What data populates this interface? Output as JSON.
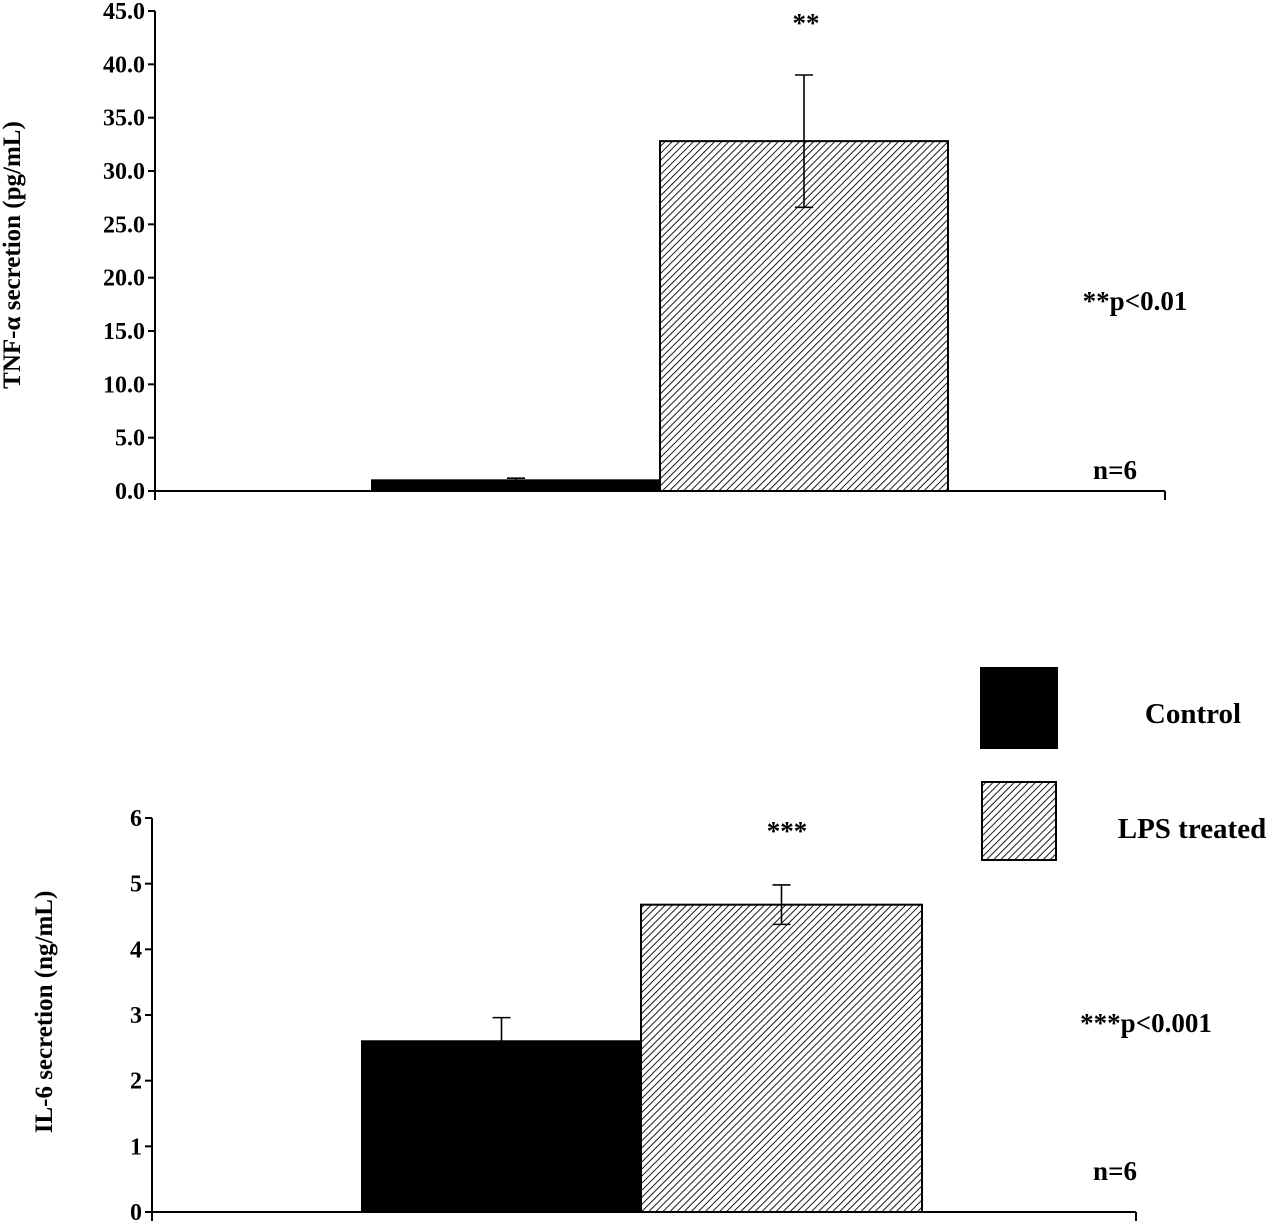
{
  "colors": {
    "control": "#000000",
    "lps_hatch": "#000000",
    "background": "#ffffff"
  },
  "chart_data": [
    {
      "type": "bar",
      "categories": [
        "Control",
        "LPS treated"
      ],
      "series": [
        {
          "name": "Control",
          "values": [
            1.0,
            null
          ],
          "errors": [
            0.2,
            null
          ]
        },
        {
          "name": "LPS treated",
          "values": [
            null,
            32.8
          ],
          "errors": [
            null,
            6.2
          ]
        }
      ],
      "ylabel": "TNF-α secretion (pg/mL)",
      "ylim": [
        0,
        45
      ],
      "yticks": [
        "0.0",
        "5.0",
        "10.0",
        "15.0",
        "20.0",
        "25.0",
        "30.0",
        "35.0",
        "40.0",
        "45.0"
      ],
      "significance_marker": "**",
      "p_value_label": "**p<0.01",
      "n_label": "n=6",
      "grid": false
    },
    {
      "type": "bar",
      "categories": [
        "Control",
        "LPS treated"
      ],
      "series": [
        {
          "name": "Control",
          "values": [
            2.6,
            null
          ],
          "errors": [
            0.36,
            null
          ]
        },
        {
          "name": "LPS treated",
          "values": [
            null,
            4.68
          ],
          "errors": [
            null,
            0.3
          ]
        }
      ],
      "ylabel": "IL-6 secretion (ng/mL)",
      "ylim": [
        0,
        6
      ],
      "yticks": [
        "0",
        "1",
        "2",
        "3",
        "4",
        "5",
        "6"
      ],
      "significance_marker": "***",
      "p_value_label": "***p<0.001",
      "n_label": "n=6",
      "grid": false
    }
  ],
  "legend": {
    "placement": "right",
    "items": [
      {
        "label": "Control",
        "fill": "solid"
      },
      {
        "label": "LPS treated",
        "fill": "hatched"
      }
    ]
  }
}
